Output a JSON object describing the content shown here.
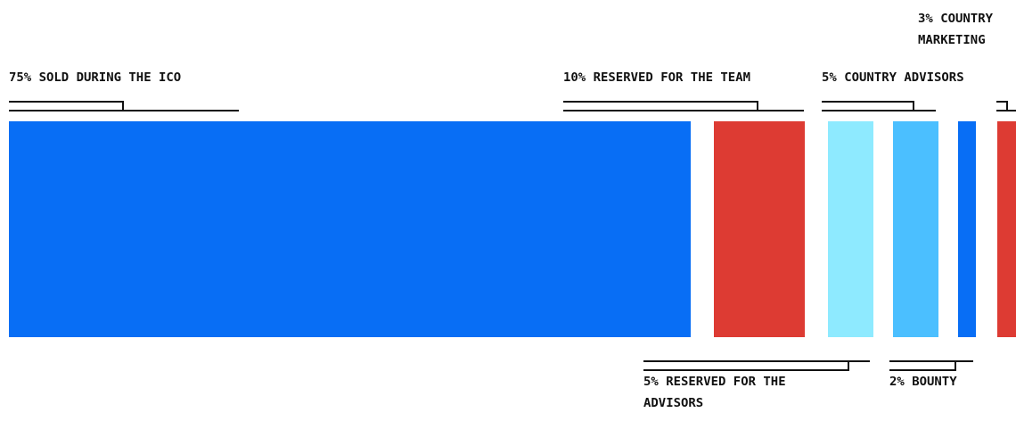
{
  "chart_data": {
    "type": "bar",
    "categories": [
      "Sold during the ICO",
      "Reserved for the team",
      "Reserved for the advisors",
      "Country advisors",
      "Bounty",
      "Country marketing"
    ],
    "values": [
      75,
      10,
      5,
      5,
      2,
      3
    ],
    "unit": "%",
    "title": "",
    "xlabel": "",
    "ylabel": "",
    "segments": [
      {
        "label_lines": [
          "75% SOLD DURING THE ICO"
        ],
        "value": 75,
        "color": "#086ef5",
        "label_side": "top"
      },
      {
        "label_lines": [
          "10% RESERVED FOR THE TEAM"
        ],
        "value": 10,
        "color": "#dd3b33",
        "label_side": "top"
      },
      {
        "label_lines": [
          "5% RESERVED FOR THE",
          "ADVISORS"
        ],
        "value": 5,
        "color": "#8eeaff",
        "label_side": "bottom"
      },
      {
        "label_lines": [
          "5% COUNTRY ADVISORS"
        ],
        "value": 5,
        "color": "#4bbfff",
        "label_side": "top"
      },
      {
        "label_lines": [
          "2% BOUNTY"
        ],
        "value": 2,
        "color": "#086ef5",
        "label_side": "bottom"
      },
      {
        "label_lines": [
          "3% COUNTRY",
          "MARKETING"
        ],
        "value": 3,
        "color": "#dd3b33",
        "label_side": "top"
      }
    ]
  }
}
